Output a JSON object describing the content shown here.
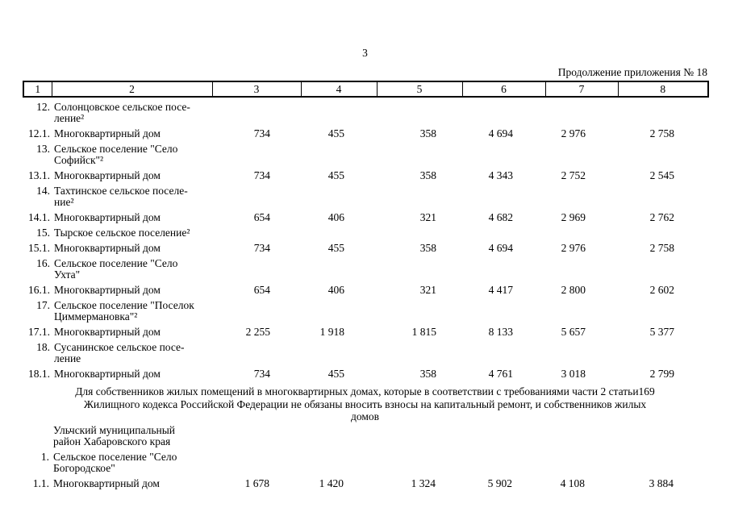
{
  "page": {
    "number": "3",
    "continuation": "Продолжение приложения № 18"
  },
  "colors": {
    "text": "#000000",
    "background": "#ffffff",
    "border": "#000000"
  },
  "table": {
    "columns": [
      "1",
      "2",
      "3",
      "4",
      "5",
      "6",
      "7",
      "8"
    ],
    "rows": [
      {
        "num": "12.",
        "name": "Солонцовское сельское посе-\nление²",
        "values": [
          "",
          "",
          "",
          "",
          "",
          ""
        ]
      },
      {
        "num": "12.1.",
        "name": "Многоквартирный дом",
        "values": [
          "734",
          "455",
          "358",
          "4 694",
          "2 976",
          "2 758"
        ]
      },
      {
        "num": "13.",
        "name": "Сельское поселение \"Село\nСофийск\"²",
        "values": [
          "",
          "",
          "",
          "",
          "",
          ""
        ]
      },
      {
        "num": "13.1.",
        "name": "Многоквартирный дом",
        "values": [
          "734",
          "455",
          "358",
          "4 343",
          "2 752",
          "2 545"
        ]
      },
      {
        "num": "14.",
        "name": "Тахтинское сельское поселе-\nние²",
        "values": [
          "",
          "",
          "",
          "",
          "",
          ""
        ]
      },
      {
        "num": "14.1.",
        "name": "Многоквартирный дом",
        "values": [
          "654",
          "406",
          "321",
          "4 682",
          "2 969",
          "2 762"
        ]
      },
      {
        "num": "15.",
        "name": "Тырское сельское поселение²",
        "values": [
          "",
          "",
          "",
          "",
          "",
          ""
        ]
      },
      {
        "num": "15.1.",
        "name": "Многоквартирный дом",
        "values": [
          "734",
          "455",
          "358",
          "4 694",
          "2 976",
          "2 758"
        ]
      },
      {
        "num": "16.",
        "name": "Сельское поселение \"Село\nУхта\"",
        "values": [
          "",
          "",
          "",
          "",
          "",
          ""
        ]
      },
      {
        "num": "16.1.",
        "name": "Многоквартирный дом",
        "values": [
          "654",
          "406",
          "321",
          "4 417",
          "2 800",
          "2 602"
        ]
      },
      {
        "num": "17.",
        "name": "Сельское поселение \"Поселок\nЦиммермановка\"²",
        "values": [
          "",
          "",
          "",
          "",
          "",
          ""
        ]
      },
      {
        "num": "17.1.",
        "name": "Многоквартирный дом",
        "values": [
          "2 255",
          "1 918",
          "1 815",
          "8 133",
          "5 657",
          "5 377"
        ]
      },
      {
        "num": "18.",
        "name": "Сусанинское сельское посе-\nление",
        "values": [
          "",
          "",
          "",
          "",
          "",
          ""
        ]
      },
      {
        "num": "18.1.",
        "name": "Многоквартирный дом",
        "values": [
          "734",
          "455",
          "358",
          "4 761",
          "3 018",
          "2 799"
        ]
      }
    ]
  },
  "note": "Для собственников жилых помещений в многоквартирных домах, которые в соответствии с требованиями части 2 статьи169\nЖилищного кодекса Российской Федерации не обязаны вносить взносы на капитальный ремонт, и собственников жилых\nдомов",
  "table2": {
    "rows": [
      {
        "num": "",
        "name": "Ульчский муниципальный\nрайон Хабаровского края",
        "values": [
          "",
          "",
          "",
          "",
          "",
          ""
        ]
      },
      {
        "num": "1.",
        "name": "Сельское поселение \"Село\nБогородское\"",
        "values": [
          "",
          "",
          "",
          "",
          "",
          ""
        ]
      },
      {
        "num": "1.1.",
        "name": "Многоквартирный дом",
        "values": [
          "1 678",
          "1 420",
          "1 324",
          "5 902",
          "4 108",
          "3 884"
        ]
      }
    ]
  }
}
